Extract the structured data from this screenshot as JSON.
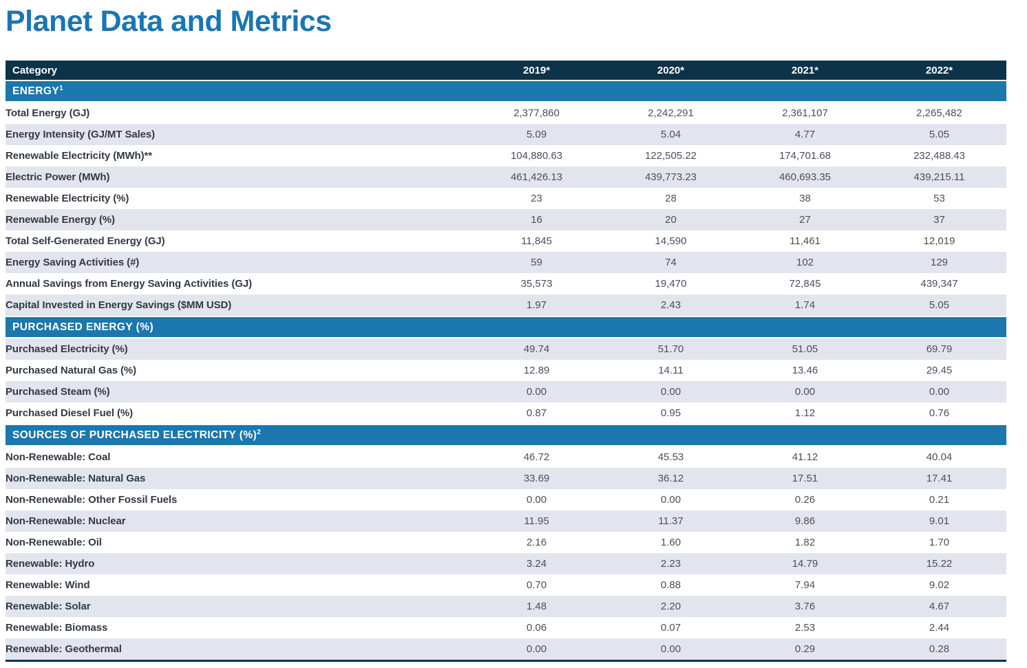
{
  "page": {
    "title": "Planet Data and Metrics"
  },
  "colors": {
    "title_blue": "#1b75b5",
    "header_bg": "#0d3349",
    "section_bg": "#1b77ae",
    "row_shaded": "#e2e5ee"
  },
  "table": {
    "columns": [
      "Category",
      "2019*",
      "2020*",
      "2021*",
      "2022*"
    ],
    "sections": [
      {
        "title": "ENERGY",
        "sup": "1",
        "rows": [
          {
            "label": "Total Energy (GJ)",
            "values": [
              "2,377,860",
              "2,242,291",
              "2,361,107",
              "2,265,482"
            ]
          },
          {
            "label": "Energy Intensity (GJ/MT Sales)",
            "values": [
              "5.09",
              "5.04",
              "4.77",
              "5.05"
            ]
          },
          {
            "label": "Renewable Electricity (MWh)**",
            "values": [
              "104,880.63",
              "122,505.22",
              "174,701.68",
              "232,488.43"
            ]
          },
          {
            "label": "Electric Power (MWh)",
            "values": [
              "461,426.13",
              "439,773.23",
              "460,693.35",
              "439,215.11"
            ]
          },
          {
            "label": "Renewable Electricity (%)",
            "values": [
              "23",
              "28",
              "38",
              "53"
            ]
          },
          {
            "label": "Renewable Energy (%)",
            "values": [
              "16",
              "20",
              "27",
              "37"
            ]
          },
          {
            "label": "Total Self-Generated Energy (GJ)",
            "values": [
              "11,845",
              "14,590",
              "11,461",
              "12,019"
            ]
          },
          {
            "label": "Energy Saving Activities (#)",
            "values": [
              "59",
              "74",
              "102",
              "129"
            ]
          },
          {
            "label": "Annual Savings from Energy Saving Activities (GJ)",
            "values": [
              "35,573",
              "19,470",
              "72,845",
              "439,347"
            ]
          },
          {
            "label": "Capital Invested in Energy Savings ($MM USD)",
            "values": [
              "1.97",
              "2.43",
              "1.74",
              "5.05"
            ]
          }
        ]
      },
      {
        "title": "PURCHASED ENERGY (%)",
        "sup": "",
        "rows": [
          {
            "label": "Purchased Electricity (%)",
            "values": [
              "49.74",
              "51.70",
              "51.05",
              "69.79"
            ]
          },
          {
            "label": "Purchased Natural Gas (%)",
            "values": [
              "12.89",
              "14.11",
              "13.46",
              "29.45"
            ]
          },
          {
            "label": "Purchased Steam (%)",
            "values": [
              "0.00",
              "0.00",
              "0.00",
              "0.00"
            ]
          },
          {
            "label": "Purchased Diesel Fuel (%)",
            "values": [
              "0.87",
              "0.95",
              "1.12",
              "0.76"
            ]
          }
        ]
      },
      {
        "title": "SOURCES OF PURCHASED ELECTRICITY (%)",
        "sup": "2",
        "rows": [
          {
            "label": "Non-Renewable: Coal",
            "values": [
              "46.72",
              "45.53",
              "41.12",
              "40.04"
            ]
          },
          {
            "label": "Non-Renewable: Natural Gas",
            "values": [
              "33.69",
              "36.12",
              "17.51",
              "17.41"
            ]
          },
          {
            "label": "Non-Renewable: Other Fossil Fuels",
            "values": [
              "0.00",
              "0.00",
              "0.26",
              "0.21"
            ]
          },
          {
            "label": "Non-Renewable: Nuclear",
            "values": [
              "11.95",
              "11.37",
              "9.86",
              "9.01"
            ]
          },
          {
            "label": "Non-Renewable: Oil",
            "values": [
              "2.16",
              "1.60",
              "1.82",
              "1.70"
            ]
          },
          {
            "label": "Renewable: Hydro",
            "values": [
              "3.24",
              "2.23",
              "14.79",
              "15.22"
            ]
          },
          {
            "label": "Renewable: Wind",
            "values": [
              "0.70",
              "0.88",
              "7.94",
              "9.02"
            ]
          },
          {
            "label": "Renewable: Solar",
            "values": [
              "1.48",
              "2.20",
              "3.76",
              "4.67"
            ]
          },
          {
            "label": "Renewable: Biomass",
            "values": [
              "0.06",
              "0.07",
              "2.53",
              "2.44"
            ]
          },
          {
            "label": "Renewable: Geothermal",
            "values": [
              "0.00",
              "0.00",
              "0.29",
              "0.28"
            ]
          }
        ]
      }
    ]
  }
}
